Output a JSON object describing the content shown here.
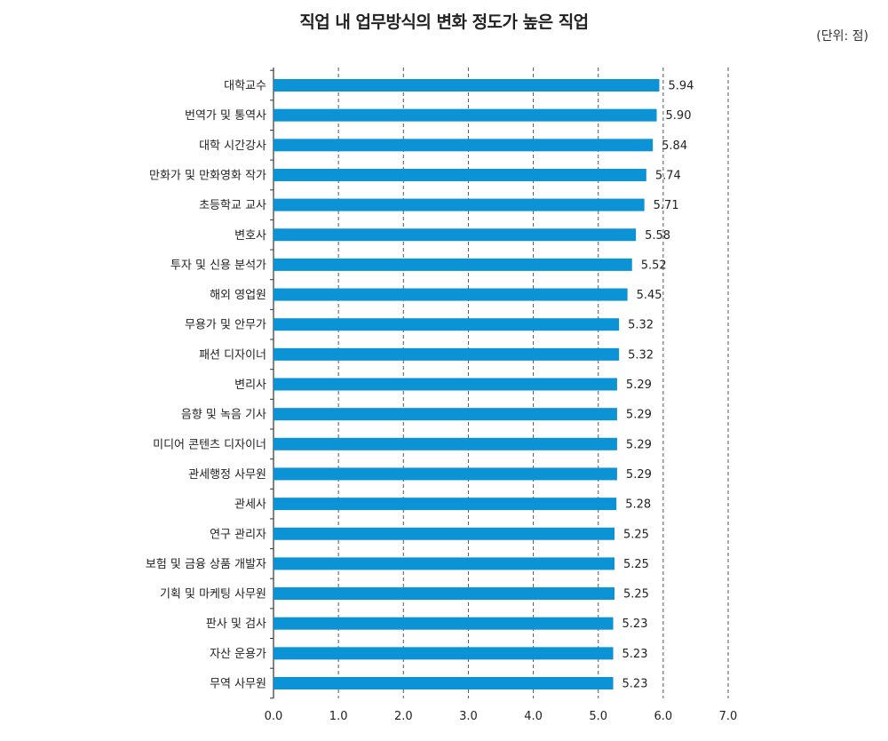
{
  "header": {
    "title": "직업 내 업무방식의 변화 정도가 높은 직업",
    "unit": "(단위: 점)"
  },
  "chart_data": {
    "type": "bar",
    "orientation": "horizontal",
    "title": "직업 내 업무방식의 변화 정도가 높은 직업",
    "unit": "(단위: 점)",
    "xlabel": "",
    "ylabel": "",
    "xlim": [
      0,
      7
    ],
    "xticks": [
      "0.0",
      "1.0",
      "2.0",
      "3.0",
      "4.0",
      "5.0",
      "6.0",
      "7.0"
    ],
    "grid": "vertical dashed",
    "bar_color": "#0b93d6",
    "categories": [
      "대학교수",
      "번역가 및 통역사",
      "대학 시간강사",
      "만화가 및 만화영화 작가",
      "초등학교 교사",
      "변호사",
      "투자 및 신용 분석가",
      "해외 영업원",
      "무용가 및 안무가",
      "패션 디자이너",
      "변리사",
      "음향 및 녹음 기사",
      "미디어 콘텐츠 디자이너",
      "관세행정 사무원",
      "관세사",
      "연구 관리자",
      "보험 및 금융 상품 개발자",
      "기획 및 마케팅 사무원",
      "판사 및 검사",
      "자산 운용가",
      "무역 사무원"
    ],
    "values": [
      5.94,
      5.9,
      5.84,
      5.74,
      5.71,
      5.58,
      5.52,
      5.45,
      5.32,
      5.32,
      5.29,
      5.29,
      5.29,
      5.29,
      5.28,
      5.25,
      5.25,
      5.25,
      5.23,
      5.23,
      5.23
    ],
    "value_labels": [
      "5.94",
      "5.90",
      "5.84",
      "5.74",
      "5.71",
      "5.58",
      "5.52",
      "5.45",
      "5.32",
      "5.32",
      "5.29",
      "5.29",
      "5.29",
      "5.29",
      "5.28",
      "5.25",
      "5.25",
      "5.25",
      "5.23",
      "5.23",
      "5.23"
    ]
  }
}
